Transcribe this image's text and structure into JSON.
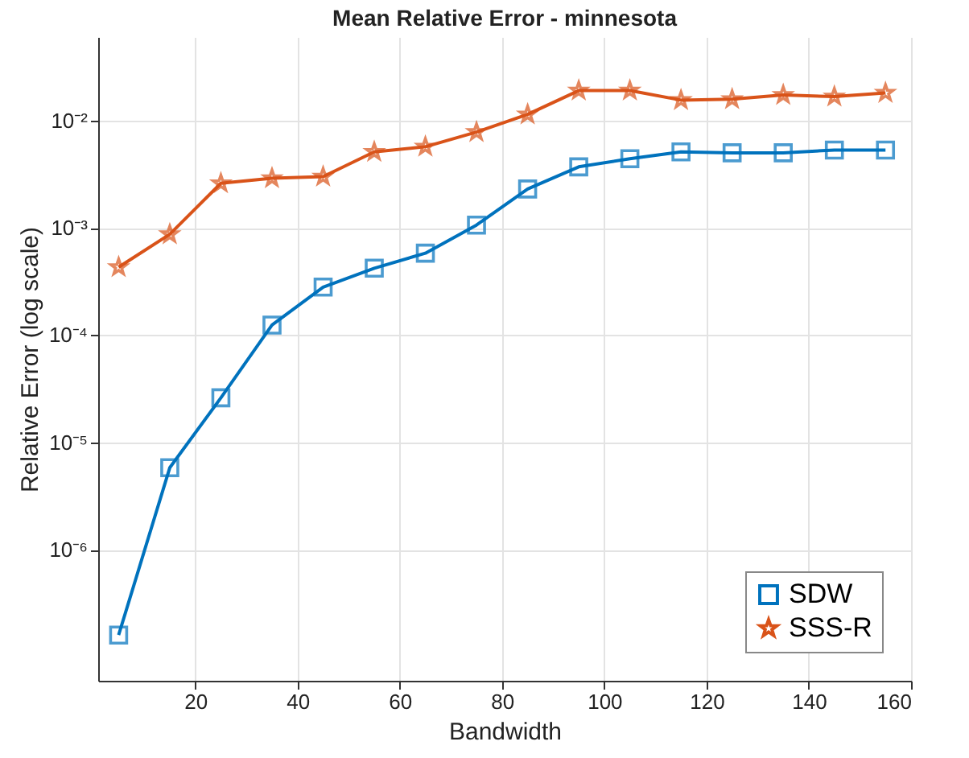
{
  "chart_data": {
    "type": "line",
    "title": "Mean Relative Error - minnesota",
    "xlabel": "Bandwidth",
    "ylabel": "Relative Error (log scale)",
    "x": [
      5,
      15,
      25,
      35,
      45,
      55,
      65,
      75,
      85,
      95,
      105,
      115,
      125,
      135,
      145,
      155
    ],
    "series": [
      {
        "name": "SDW",
        "color": "#0072bd",
        "marker": "square",
        "values": [
          1.6e-07,
          5.8e-06,
          2.6e-05,
          0.000124,
          0.00028,
          0.00042,
          0.00058,
          0.00106,
          0.0023,
          0.0037,
          0.0044,
          0.0051,
          0.005,
          0.005,
          0.0053,
          0.0053
        ]
      },
      {
        "name": "SSS-R",
        "color": "#d95319",
        "marker": "star",
        "values": [
          0.00043,
          0.00087,
          0.0026,
          0.0029,
          0.003,
          0.0051,
          0.0057,
          0.0078,
          0.0114,
          0.019,
          0.019,
          0.0155,
          0.0158,
          0.0173,
          0.0167,
          0.0181
        ]
      }
    ],
    "log": "y",
    "xlim": [
      1,
      160
    ],
    "ylim": [
      6e-08,
      0.06
    ],
    "xticks": [
      20,
      40,
      60,
      80,
      100,
      120,
      140,
      160
    ],
    "yticks": [
      {
        "value": 1e-06,
        "label": "10⁻⁶"
      },
      {
        "value": 1e-05,
        "label": "10⁻⁵"
      },
      {
        "value": 0.0001,
        "label": "10⁻⁴"
      },
      {
        "value": 0.001,
        "label": "10⁻³"
      },
      {
        "value": 0.01,
        "label": "10⁻²"
      }
    ],
    "grid": true,
    "legend": "bottom right",
    "line_style": "solid"
  }
}
